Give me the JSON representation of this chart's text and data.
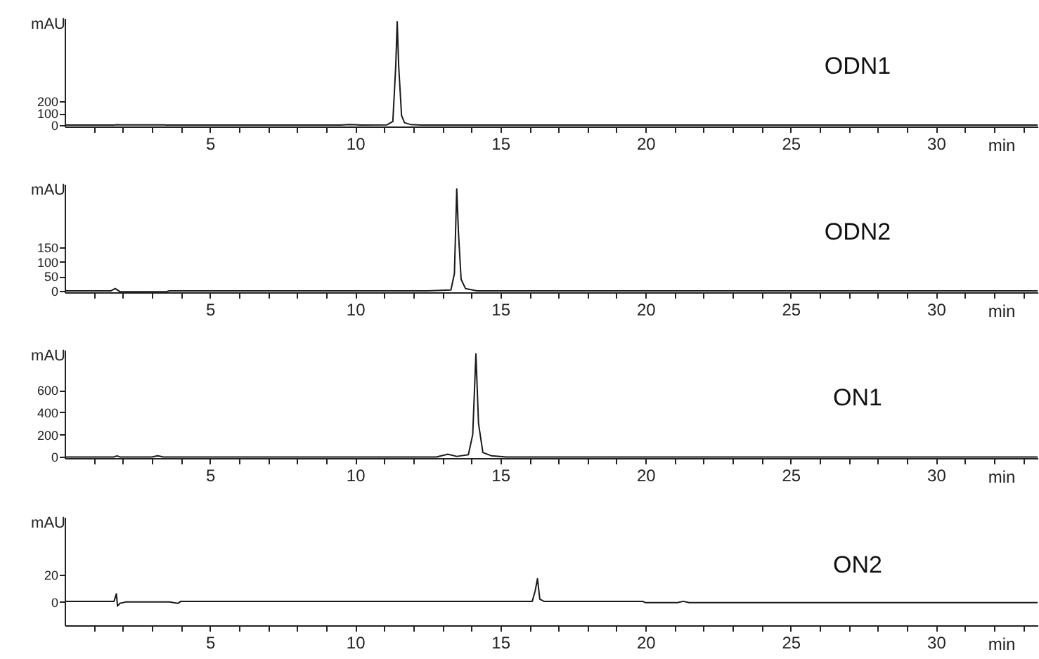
{
  "chart_data": [
    {
      "type": "line",
      "xlabel": "min",
      "ylabel": "mAU",
      "xlim": [
        0,
        33.5
      ],
      "ylim": [
        -12,
        900
      ],
      "xticks": [
        {
          "value": 1,
          "label": null
        },
        {
          "value": 2,
          "label": null
        },
        {
          "value": 3,
          "label": null
        },
        {
          "value": 4,
          "label": null
        },
        5,
        {
          "value": 6,
          "label": null
        },
        {
          "value": 7,
          "label": null
        },
        {
          "value": 8,
          "label": null
        },
        {
          "value": 9,
          "label": null
        },
        10,
        {
          "value": 11,
          "label": null
        },
        {
          "value": 12,
          "label": null
        },
        {
          "value": 13,
          "label": null
        },
        {
          "value": 14,
          "label": null
        },
        15,
        {
          "value": 16,
          "label": null
        },
        {
          "value": 17,
          "label": null
        },
        {
          "value": 18,
          "label": null
        },
        {
          "value": 19,
          "label": null
        },
        20,
        {
          "value": 21,
          "label": null
        },
        {
          "value": 22,
          "label": null
        },
        {
          "value": 23,
          "label": null
        },
        {
          "value": 24,
          "label": null
        },
        25,
        {
          "value": 26,
          "label": null
        },
        {
          "value": 27,
          "label": null
        },
        {
          "value": 28,
          "label": null
        },
        {
          "value": 29,
          "label": null
        },
        30,
        {
          "value": 31,
          "label": null
        },
        {
          "value": 32,
          "label": null
        },
        {
          "value": 33,
          "label": null
        }
      ],
      "yticks": [
        0,
        100,
        200
      ],
      "series": [
        {
          "name": "ODN1",
          "color": "#1a1a1a",
          "x": [
            0,
            1.7,
            1.8,
            1.9,
            3.4,
            3.5,
            9.5,
            9.8,
            10.2,
            11.1,
            11.3,
            11.4,
            11.45,
            11.5,
            11.6,
            11.7,
            11.9,
            12.3,
            33.5
          ],
          "values": [
            0,
            0,
            3,
            1,
            1,
            0,
            0,
            4,
            0,
            2,
            30,
            500,
            870,
            500,
            80,
            20,
            5,
            0,
            0
          ]
        }
      ]
    },
    {
      "type": "line",
      "xlabel": "min",
      "ylabel": "mAU",
      "xlim": [
        0,
        33.5
      ],
      "ylim": [
        -5,
        370
      ],
      "xticks": [
        {
          "value": 1,
          "label": null
        },
        {
          "value": 2,
          "label": null
        },
        {
          "value": 3,
          "label": null
        },
        {
          "value": 4,
          "label": null
        },
        5,
        {
          "value": 6,
          "label": null
        },
        {
          "value": 7,
          "label": null
        },
        {
          "value": 8,
          "label": null
        },
        {
          "value": 9,
          "label": null
        },
        10,
        {
          "value": 11,
          "label": null
        },
        {
          "value": 12,
          "label": null
        },
        {
          "value": 13,
          "label": null
        },
        {
          "value": 14,
          "label": null
        },
        15,
        {
          "value": 16,
          "label": null
        },
        {
          "value": 17,
          "label": null
        },
        {
          "value": 18,
          "label": null
        },
        {
          "value": 19,
          "label": null
        },
        20,
        {
          "value": 21,
          "label": null
        },
        {
          "value": 22,
          "label": null
        },
        {
          "value": 23,
          "label": null
        },
        {
          "value": 24,
          "label": null
        },
        25,
        {
          "value": 26,
          "label": null
        },
        {
          "value": 27,
          "label": null
        },
        {
          "value": 28,
          "label": null
        },
        {
          "value": 29,
          "label": null
        },
        30,
        {
          "value": 31,
          "label": null
        },
        {
          "value": 32,
          "label": null
        },
        {
          "value": 33,
          "label": null
        }
      ],
      "yticks": [
        0,
        50,
        100,
        150
      ],
      "series": [
        {
          "name": "ODN2",
          "color": "#1a1a1a",
          "x": [
            0,
            1.6,
            1.74,
            1.9,
            3.5,
            3.6,
            12.5,
            13.3,
            13.42,
            13.5,
            13.56,
            13.65,
            13.8,
            14.2,
            33.5
          ],
          "values": [
            0,
            0,
            8,
            -3,
            -3,
            0,
            0,
            3,
            60,
            353,
            200,
            40,
            8,
            0,
            0
          ]
        }
      ]
    },
    {
      "type": "line",
      "xlabel": "min",
      "ylabel": "mAU",
      "xlim": [
        0,
        33.5
      ],
      "ylim": [
        -10,
        960
      ],
      "xticks": [
        {
          "value": 1,
          "label": null
        },
        {
          "value": 2,
          "label": null
        },
        {
          "value": 3,
          "label": null
        },
        {
          "value": 4,
          "label": null
        },
        5,
        {
          "value": 6,
          "label": null
        },
        {
          "value": 7,
          "label": null
        },
        {
          "value": 8,
          "label": null
        },
        {
          "value": 9,
          "label": null
        },
        10,
        {
          "value": 11,
          "label": null
        },
        {
          "value": 12,
          "label": null
        },
        {
          "value": 13,
          "label": null
        },
        {
          "value": 14,
          "label": null
        },
        15,
        {
          "value": 16,
          "label": null
        },
        {
          "value": 17,
          "label": null
        },
        {
          "value": 18,
          "label": null
        },
        {
          "value": 19,
          "label": null
        },
        20,
        {
          "value": 21,
          "label": null
        },
        {
          "value": 22,
          "label": null
        },
        {
          "value": 23,
          "label": null
        },
        {
          "value": 24,
          "label": null
        },
        25,
        {
          "value": 26,
          "label": null
        },
        {
          "value": 27,
          "label": null
        },
        {
          "value": 28,
          "label": null
        },
        {
          "value": 29,
          "label": null
        },
        30,
        {
          "value": 31,
          "label": null
        },
        {
          "value": 32,
          "label": null
        },
        {
          "value": 33,
          "label": null
        }
      ],
      "yticks": [
        0,
        200,
        400,
        600
      ],
      "series": [
        {
          "name": "ON1",
          "color": "#1a1a1a",
          "x": [
            0,
            1.7,
            1.8,
            1.9,
            3.0,
            3.2,
            3.4,
            12.8,
            13.19,
            13.5,
            13.9,
            14.05,
            14.16,
            14.25,
            14.4,
            14.7,
            15.2,
            33.5
          ],
          "values": [
            0,
            0,
            10,
            0,
            0,
            10,
            0,
            0,
            25,
            5,
            20,
            200,
            924,
            300,
            40,
            10,
            0,
            0
          ]
        }
      ]
    },
    {
      "type": "line",
      "xlabel": "min",
      "ylabel": "mAU",
      "xlim": [
        0,
        33.5
      ],
      "ylim": [
        -17,
        62
      ],
      "xticks": [
        {
          "value": 1,
          "label": null
        },
        {
          "value": 2,
          "label": null
        },
        {
          "value": 3,
          "label": null
        },
        {
          "value": 4,
          "label": null
        },
        5,
        {
          "value": 6,
          "label": null
        },
        {
          "value": 7,
          "label": null
        },
        {
          "value": 8,
          "label": null
        },
        {
          "value": 9,
          "label": null
        },
        10,
        {
          "value": 11,
          "label": null
        },
        {
          "value": 12,
          "label": null
        },
        {
          "value": 13,
          "label": null
        },
        {
          "value": 14,
          "label": null
        },
        15,
        {
          "value": 16,
          "label": null
        },
        {
          "value": 17,
          "label": null
        },
        {
          "value": 18,
          "label": null
        },
        {
          "value": 19,
          "label": null
        },
        20,
        {
          "value": 21,
          "label": null
        },
        {
          "value": 22,
          "label": null
        },
        {
          "value": 23,
          "label": null
        },
        {
          "value": 24,
          "label": null
        },
        25,
        {
          "value": 26,
          "label": null
        },
        {
          "value": 27,
          "label": null
        },
        {
          "value": 28,
          "label": null
        },
        {
          "value": 29,
          "label": null
        },
        30,
        {
          "value": 31,
          "label": null
        },
        {
          "value": 32,
          "label": null
        },
        {
          "value": 33,
          "label": null
        }
      ],
      "yticks": [
        0,
        20
      ],
      "series": [
        {
          "name": "ON2",
          "color": "#1a1a1a",
          "x": [
            0,
            1.7,
            1.78,
            1.82,
            1.9,
            2.1,
            3.6,
            3.9,
            4.0,
            16.1,
            16.2,
            16.28,
            16.36,
            16.5,
            19.9,
            20.0,
            21.1,
            21.3,
            21.5,
            33.5
          ],
          "values": [
            0.5,
            0.5,
            6,
            -3,
            -1,
            0,
            0,
            -1,
            0.5,
            0.5,
            8,
            17,
            2,
            0.5,
            0.5,
            -0.5,
            -0.5,
            0.5,
            -0.5,
            -0.5
          ]
        }
      ]
    }
  ]
}
